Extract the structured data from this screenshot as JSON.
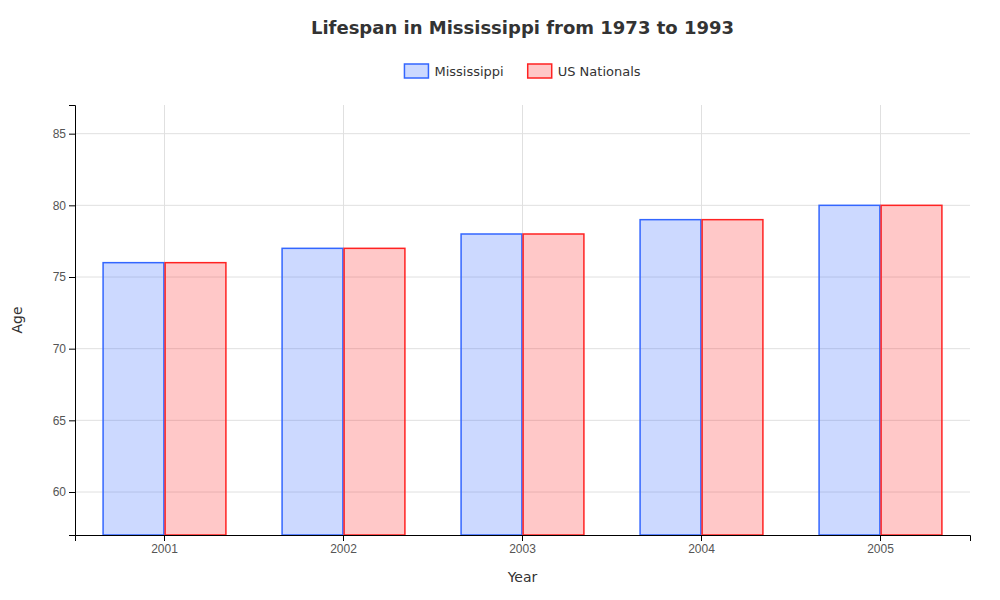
{
  "chart_data": {
    "type": "bar",
    "title": "Lifespan in Mississippi from 1973 to 1993",
    "xlabel": "Year",
    "ylabel": "Age",
    "categories": [
      "2001",
      "2002",
      "2003",
      "2004",
      "2005"
    ],
    "series": [
      {
        "name": "Mississippi",
        "color": "#3366ff",
        "values": [
          76,
          77,
          78,
          79,
          80
        ]
      },
      {
        "name": "US Nationals",
        "color": "#ff2222",
        "values": [
          76,
          77,
          78,
          79,
          80
        ]
      }
    ],
    "ylim": [
      57,
      87
    ],
    "yticks": [
      60,
      65,
      70,
      75,
      80,
      85
    ],
    "grid": true,
    "legend": "top"
  }
}
